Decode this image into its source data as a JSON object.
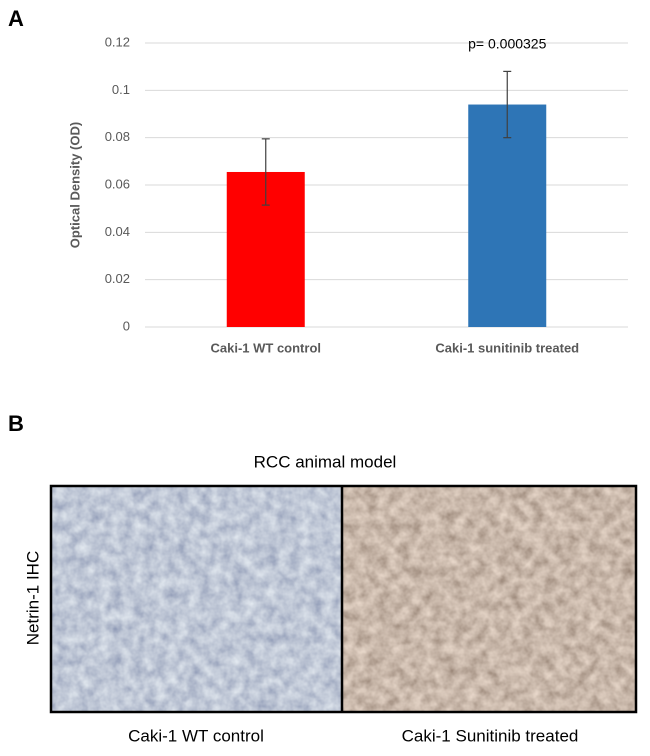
{
  "chart_data": {
    "type": "bar",
    "y_label": "Optical Density (OD)",
    "categories": [
      "Caki-1 WT control",
      "Caki-1 sunitinib treated"
    ],
    "values": [
      0.0655,
      0.094
    ],
    "errors": [
      0.014,
      0.014
    ],
    "colors": [
      "#ff0000",
      "#2e75b6"
    ],
    "annotation": "p= 0.000325",
    "ylim": [
      0,
      0.12
    ],
    "yticks": [
      0,
      0.02,
      0.04,
      0.06,
      0.08,
      0.1,
      0.12
    ],
    "grid": true
  },
  "panel_a": {
    "label": "A"
  },
  "panel_b": {
    "label": "B",
    "title": "RCC animal model",
    "row_label": "Netrin-1 IHC",
    "captions": [
      "Caki-1 WT control",
      "Caki-1 Sunitinib treated"
    ]
  }
}
